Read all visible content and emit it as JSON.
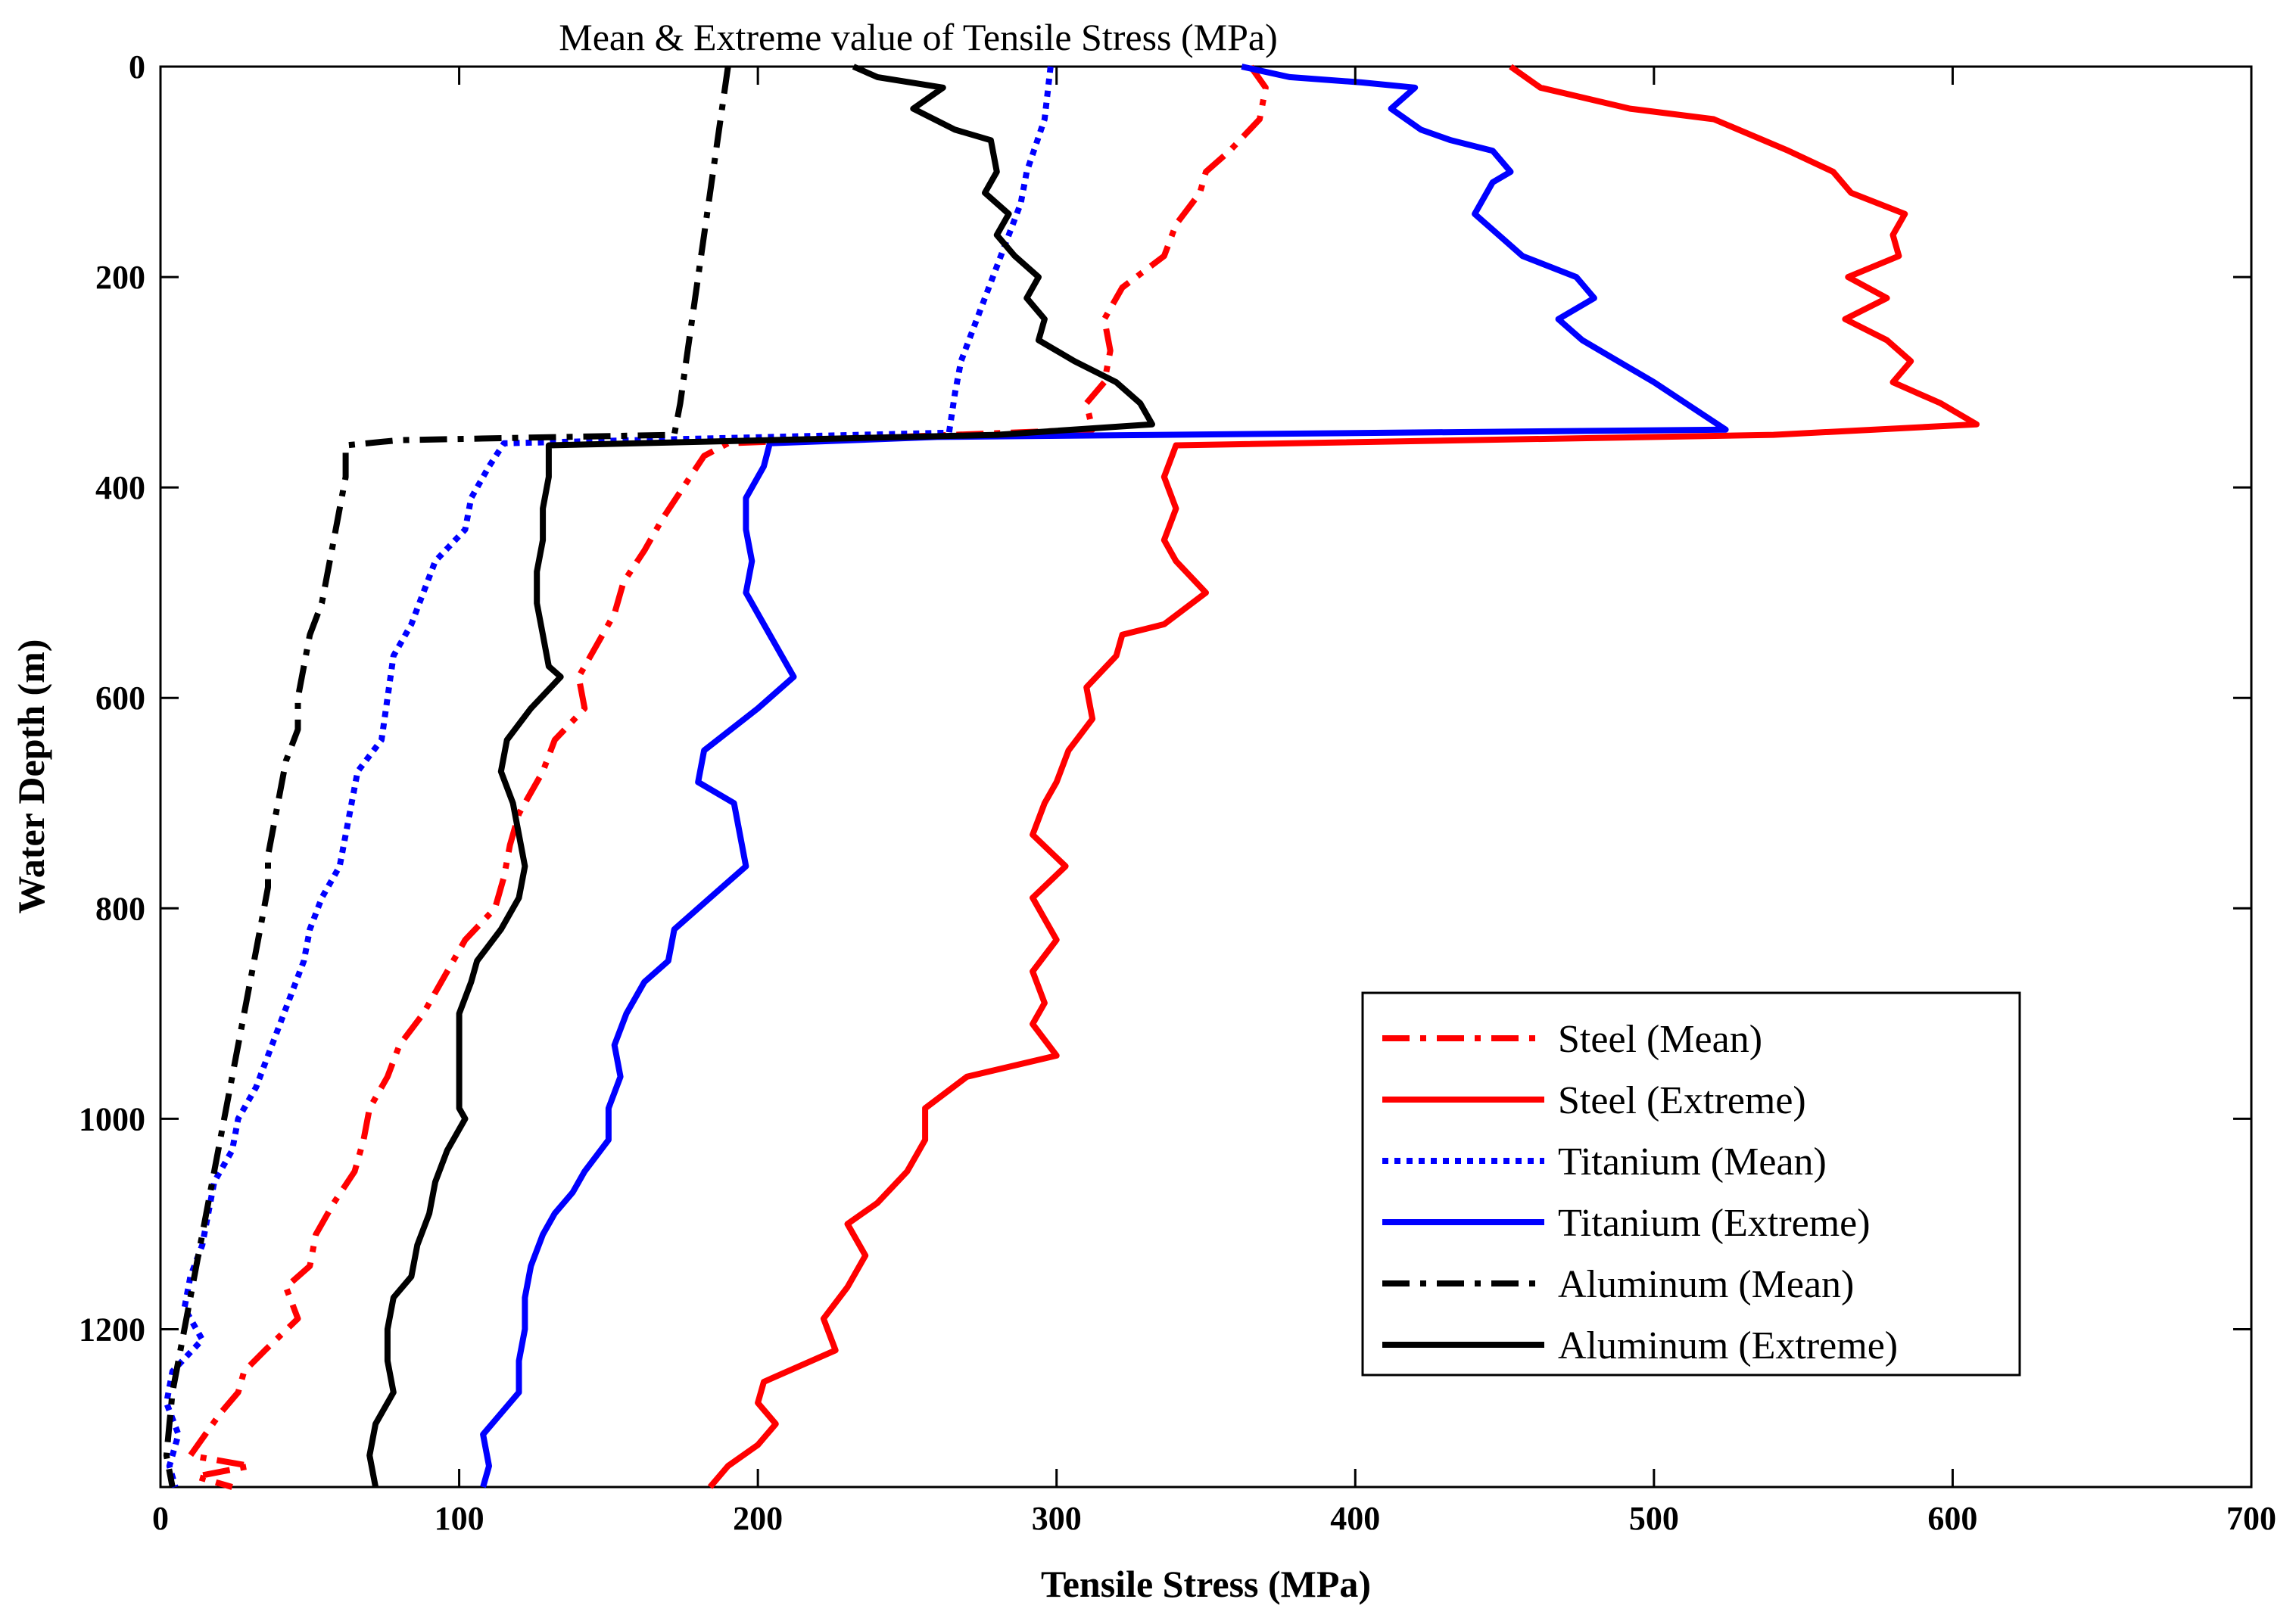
{
  "chart_data": {
    "type": "line",
    "title": "Mean & Extreme value of Tensile Stress (MPa)",
    "xlabel": "Tensile Stress (MPa)",
    "ylabel": "Water Depth (m)",
    "xlim": [
      0,
      700
    ],
    "ylim": [
      0,
      1350
    ],
    "y_reversed": true,
    "xticks": [
      0,
      100,
      200,
      300,
      400,
      500,
      600,
      700
    ],
    "yticks": [
      0,
      200,
      400,
      600,
      800,
      1000,
      1200
    ],
    "xtick_labels": [
      "0",
      "100",
      "200",
      "300",
      "400",
      "500",
      "600",
      "700"
    ],
    "ytick_labels": [
      "0",
      "200",
      "400",
      "600",
      "800",
      "1000",
      "1200"
    ],
    "grid": false,
    "legend_position": "bottom-right",
    "series": [
      {
        "name": "Steel (Mean)",
        "color": "#ff0000",
        "line_style": "dashdot",
        "points": [
          [
            365,
            0
          ],
          [
            370,
            20
          ],
          [
            368,
            50
          ],
          [
            358,
            80
          ],
          [
            350,
            100
          ],
          [
            348,
            120
          ],
          [
            340,
            150
          ],
          [
            336,
            180
          ],
          [
            322,
            210
          ],
          [
            316,
            240
          ],
          [
            318,
            270
          ],
          [
            316,
            300
          ],
          [
            310,
            320
          ],
          [
            312,
            345
          ],
          [
            190,
            358
          ],
          [
            182,
            370
          ],
          [
            175,
            400
          ],
          [
            168,
            430
          ],
          [
            162,
            460
          ],
          [
            155,
            490
          ],
          [
            152,
            520
          ],
          [
            146,
            550
          ],
          [
            140,
            580
          ],
          [
            142,
            610
          ],
          [
            132,
            640
          ],
          [
            128,
            670
          ],
          [
            120,
            710
          ],
          [
            117,
            740
          ],
          [
            115,
            770
          ],
          [
            112,
            800
          ],
          [
            102,
            830
          ],
          [
            98,
            850
          ],
          [
            94,
            870
          ],
          [
            88,
            900
          ],
          [
            80,
            930
          ],
          [
            76,
            960
          ],
          [
            70,
            990
          ],
          [
            68,
            1020
          ],
          [
            65,
            1050
          ],
          [
            58,
            1080
          ],
          [
            52,
            1110
          ],
          [
            50,
            1140
          ],
          [
            42,
            1160
          ],
          [
            46,
            1190
          ],
          [
            35,
            1220
          ],
          [
            28,
            1240
          ],
          [
            26,
            1260
          ],
          [
            20,
            1280
          ],
          [
            15,
            1300
          ],
          [
            10,
            1320
          ],
          [
            30,
            1330
          ],
          [
            12,
            1340
          ],
          [
            24,
            1350
          ]
        ]
      },
      {
        "name": "Steel (Extreme)",
        "color": "#ff0000",
        "line_style": "solid",
        "points": [
          [
            452,
            0
          ],
          [
            462,
            20
          ],
          [
            492,
            40
          ],
          [
            520,
            50
          ],
          [
            545,
            80
          ],
          [
            560,
            100
          ],
          [
            566,
            120
          ],
          [
            584,
            140
          ],
          [
            580,
            160
          ],
          [
            582,
            180
          ],
          [
            565,
            200
          ],
          [
            578,
            220
          ],
          [
            564,
            240
          ],
          [
            578,
            260
          ],
          [
            586,
            280
          ],
          [
            580,
            300
          ],
          [
            596,
            320
          ],
          [
            608,
            340
          ],
          [
            540,
            350
          ],
          [
            340,
            360
          ],
          [
            336,
            390
          ],
          [
            340,
            420
          ],
          [
            336,
            450
          ],
          [
            340,
            470
          ],
          [
            350,
            500
          ],
          [
            336,
            530
          ],
          [
            322,
            540
          ],
          [
            320,
            560
          ],
          [
            310,
            590
          ],
          [
            312,
            620
          ],
          [
            304,
            650
          ],
          [
            300,
            680
          ],
          [
            296,
            700
          ],
          [
            292,
            730
          ],
          [
            303,
            760
          ],
          [
            292,
            790
          ],
          [
            300,
            830
          ],
          [
            292,
            860
          ],
          [
            296,
            890
          ],
          [
            292,
            910
          ],
          [
            300,
            940
          ],
          [
            270,
            960
          ],
          [
            256,
            990
          ],
          [
            256,
            1020
          ],
          [
            250,
            1050
          ],
          [
            240,
            1080
          ],
          [
            230,
            1100
          ],
          [
            236,
            1130
          ],
          [
            230,
            1160
          ],
          [
            222,
            1190
          ],
          [
            226,
            1220
          ],
          [
            202,
            1250
          ],
          [
            200,
            1270
          ],
          [
            206,
            1290
          ],
          [
            200,
            1310
          ],
          [
            190,
            1330
          ],
          [
            184,
            1350
          ]
        ]
      },
      {
        "name": "Titanium (Mean)",
        "color": "#0000ff",
        "line_style": "dotted",
        "points": [
          [
            298,
            0
          ],
          [
            296,
            50
          ],
          [
            290,
            100
          ],
          [
            288,
            130
          ],
          [
            284,
            160
          ],
          [
            280,
            190
          ],
          [
            276,
            220
          ],
          [
            272,
            250
          ],
          [
            268,
            280
          ],
          [
            266,
            310
          ],
          [
            264,
            348
          ],
          [
            115,
            358
          ],
          [
            110,
            380
          ],
          [
            104,
            410
          ],
          [
            102,
            440
          ],
          [
            92,
            470
          ],
          [
            88,
            500
          ],
          [
            84,
            530
          ],
          [
            78,
            560
          ],
          [
            76,
            600
          ],
          [
            74,
            640
          ],
          [
            66,
            670
          ],
          [
            64,
            700
          ],
          [
            62,
            730
          ],
          [
            60,
            760
          ],
          [
            54,
            790
          ],
          [
            50,
            820
          ],
          [
            48,
            850
          ],
          [
            44,
            880
          ],
          [
            40,
            910
          ],
          [
            36,
            940
          ],
          [
            32,
            970
          ],
          [
            26,
            1000
          ],
          [
            24,
            1030
          ],
          [
            18,
            1060
          ],
          [
            16,
            1090
          ],
          [
            14,
            1120
          ],
          [
            10,
            1150
          ],
          [
            8,
            1180
          ],
          [
            14,
            1210
          ],
          [
            4,
            1240
          ],
          [
            2,
            1270
          ],
          [
            6,
            1300
          ],
          [
            3,
            1330
          ],
          [
            5,
            1350
          ]
        ]
      },
      {
        "name": "Titanium (Extreme)",
        "color": "#0000ff",
        "line_style": "solid",
        "points": [
          [
            362,
            0
          ],
          [
            378,
            10
          ],
          [
            402,
            15
          ],
          [
            420,
            20
          ],
          [
            412,
            40
          ],
          [
            422,
            60
          ],
          [
            432,
            70
          ],
          [
            446,
            80
          ],
          [
            452,
            100
          ],
          [
            446,
            110
          ],
          [
            440,
            140
          ],
          [
            448,
            160
          ],
          [
            456,
            180
          ],
          [
            474,
            200
          ],
          [
            480,
            220
          ],
          [
            468,
            240
          ],
          [
            476,
            260
          ],
          [
            488,
            280
          ],
          [
            500,
            300
          ],
          [
            516,
            330
          ],
          [
            524,
            345
          ],
          [
            260,
            352
          ],
          [
            204,
            358
          ],
          [
            202,
            380
          ],
          [
            196,
            410
          ],
          [
            196,
            440
          ],
          [
            198,
            470
          ],
          [
            196,
            500
          ],
          [
            202,
            530
          ],
          [
            208,
            560
          ],
          [
            212,
            580
          ],
          [
            200,
            610
          ],
          [
            182,
            650
          ],
          [
            180,
            680
          ],
          [
            192,
            700
          ],
          [
            194,
            730
          ],
          [
            196,
            760
          ],
          [
            184,
            790
          ],
          [
            172,
            820
          ],
          [
            170,
            850
          ],
          [
            162,
            870
          ],
          [
            156,
            900
          ],
          [
            152,
            930
          ],
          [
            154,
            960
          ],
          [
            150,
            990
          ],
          [
            150,
            1020
          ],
          [
            142,
            1050
          ],
          [
            138,
            1070
          ],
          [
            132,
            1090
          ],
          [
            128,
            1110
          ],
          [
            124,
            1140
          ],
          [
            122,
            1170
          ],
          [
            122,
            1200
          ],
          [
            120,
            1230
          ],
          [
            120,
            1260
          ],
          [
            114,
            1280
          ],
          [
            108,
            1300
          ],
          [
            110,
            1330
          ],
          [
            108,
            1350
          ]
        ]
      },
      {
        "name": "Aluminum (Mean)",
        "color": "#000000",
        "line_style": "dashdot",
        "points": [
          [
            190,
            0
          ],
          [
            188,
            40
          ],
          [
            186,
            80
          ],
          [
            184,
            120
          ],
          [
            182,
            160
          ],
          [
            180,
            200
          ],
          [
            178,
            240
          ],
          [
            176,
            280
          ],
          [
            174,
            320
          ],
          [
            172,
            350
          ],
          [
            80,
            355
          ],
          [
            62,
            360
          ],
          [
            62,
            390
          ],
          [
            60,
            420
          ],
          [
            58,
            450
          ],
          [
            56,
            480
          ],
          [
            54,
            510
          ],
          [
            50,
            540
          ],
          [
            48,
            570
          ],
          [
            46,
            600
          ],
          [
            46,
            630
          ],
          [
            42,
            660
          ],
          [
            40,
            690
          ],
          [
            38,
            720
          ],
          [
            36,
            750
          ],
          [
            36,
            780
          ],
          [
            34,
            810
          ],
          [
            32,
            840
          ],
          [
            30,
            870
          ],
          [
            28,
            900
          ],
          [
            26,
            930
          ],
          [
            24,
            960
          ],
          [
            22,
            990
          ],
          [
            20,
            1020
          ],
          [
            18,
            1050
          ],
          [
            16,
            1080
          ],
          [
            14,
            1110
          ],
          [
            12,
            1140
          ],
          [
            10,
            1170
          ],
          [
            8,
            1200
          ],
          [
            6,
            1230
          ],
          [
            4,
            1260
          ],
          [
            3,
            1290
          ],
          [
            2,
            1320
          ],
          [
            4,
            1350
          ]
        ]
      },
      {
        "name": "Aluminum (Extreme)",
        "color": "#000000",
        "line_style": "solid",
        "points": [
          [
            232,
            0
          ],
          [
            240,
            10
          ],
          [
            262,
            20
          ],
          [
            252,
            40
          ],
          [
            266,
            60
          ],
          [
            278,
            70
          ],
          [
            280,
            100
          ],
          [
            276,
            120
          ],
          [
            284,
            140
          ],
          [
            280,
            160
          ],
          [
            286,
            180
          ],
          [
            294,
            200
          ],
          [
            290,
            220
          ],
          [
            296,
            240
          ],
          [
            294,
            260
          ],
          [
            306,
            280
          ],
          [
            320,
            300
          ],
          [
            328,
            320
          ],
          [
            332,
            340
          ],
          [
            280,
            350
          ],
          [
            130,
            360
          ],
          [
            130,
            390
          ],
          [
            128,
            420
          ],
          [
            128,
            450
          ],
          [
            126,
            480
          ],
          [
            126,
            510
          ],
          [
            128,
            540
          ],
          [
            130,
            570
          ],
          [
            134,
            580
          ],
          [
            124,
            610
          ],
          [
            116,
            640
          ],
          [
            114,
            670
          ],
          [
            118,
            700
          ],
          [
            120,
            730
          ],
          [
            122,
            760
          ],
          [
            120,
            790
          ],
          [
            114,
            820
          ],
          [
            106,
            850
          ],
          [
            104,
            870
          ],
          [
            100,
            900
          ],
          [
            100,
            930
          ],
          [
            100,
            960
          ],
          [
            100,
            990
          ],
          [
            102,
            1000
          ],
          [
            96,
            1030
          ],
          [
            92,
            1060
          ],
          [
            90,
            1090
          ],
          [
            86,
            1120
          ],
          [
            84,
            1150
          ],
          [
            78,
            1170
          ],
          [
            76,
            1200
          ],
          [
            76,
            1230
          ],
          [
            78,
            1260
          ],
          [
            72,
            1290
          ],
          [
            70,
            1320
          ],
          [
            72,
            1350
          ]
        ]
      }
    ]
  }
}
